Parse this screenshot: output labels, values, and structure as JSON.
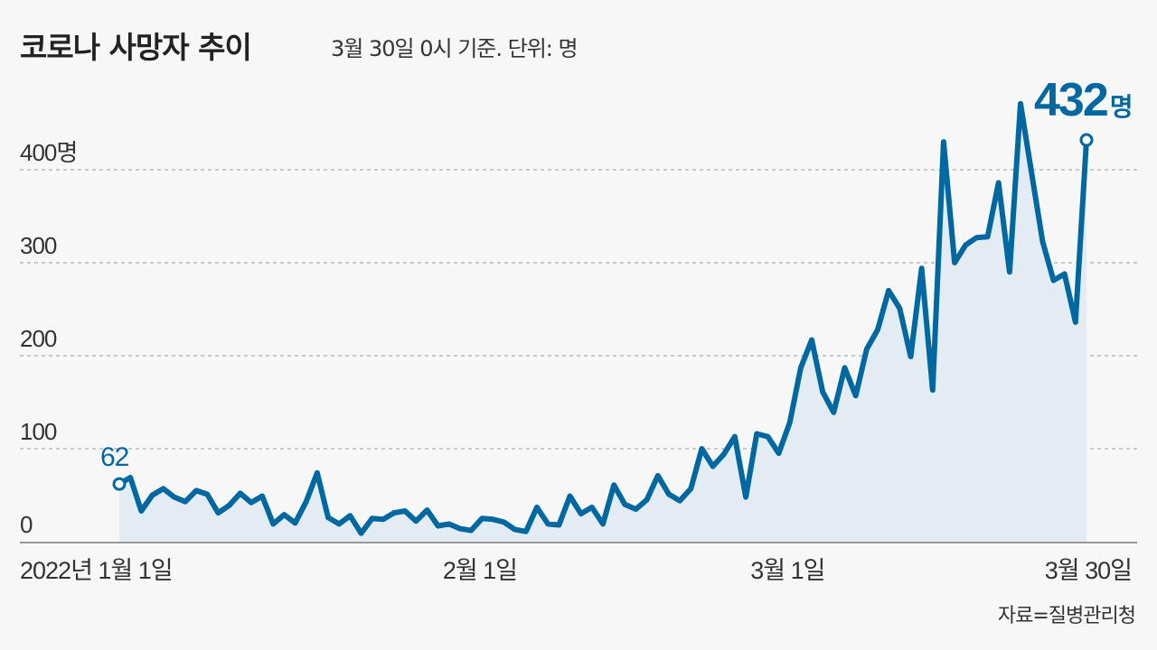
{
  "chart_data": {
    "type": "area",
    "title": "코로나 사망자 추이",
    "subtitle": "3월 30일 0시 기준. 단위: 명",
    "source": "자료=질병관리청",
    "x_start": "2022-01-01",
    "x_end": "2022-03-30",
    "x_ticks": [
      {
        "label": "2022년 1월 1일",
        "date": "2022-01-01"
      },
      {
        "label": "2월 1일",
        "date": "2022-02-01"
      },
      {
        "label": "3월 1일",
        "date": "2022-03-01"
      },
      {
        "label": "3월 30일",
        "date": "2022-03-30"
      }
    ],
    "y_ticks": [
      {
        "label": "0",
        "value": 0
      },
      {
        "label": "100",
        "value": 100
      },
      {
        "label": "200",
        "value": 200
      },
      {
        "label": "300",
        "value": 300
      },
      {
        "label": "400명",
        "value": 400
      }
    ],
    "ylim": [
      0,
      400
    ],
    "grid": true,
    "values": [
      62,
      69,
      33,
      50,
      57,
      48,
      43,
      55,
      51,
      31,
      39,
      52,
      42,
      49,
      19,
      29,
      20,
      43,
      74,
      26,
      19,
      28,
      9,
      25,
      24,
      31,
      33,
      22,
      34,
      17,
      19,
      14,
      12,
      25,
      24,
      21,
      13,
      11,
      37,
      19,
      18,
      49,
      30,
      37,
      19,
      61,
      40,
      35,
      45,
      71,
      51,
      44,
      57,
      100,
      81,
      94,
      113,
      48,
      116,
      113,
      95,
      128,
      187,
      217,
      161,
      139,
      187,
      157,
      207,
      228,
      270,
      251,
      199,
      294,
      163,
      430,
      300,
      319,
      327,
      328,
      386,
      290,
      471,
      397,
      323,
      281,
      288,
      236,
      432
    ],
    "annotations": {
      "start": "62",
      "end_value": "432",
      "end_unit": "명"
    },
    "colors": {
      "line": "#0068a0",
      "fill": "#e3ecf3",
      "grid": "#999999",
      "background": "#f7f7f7"
    }
  }
}
